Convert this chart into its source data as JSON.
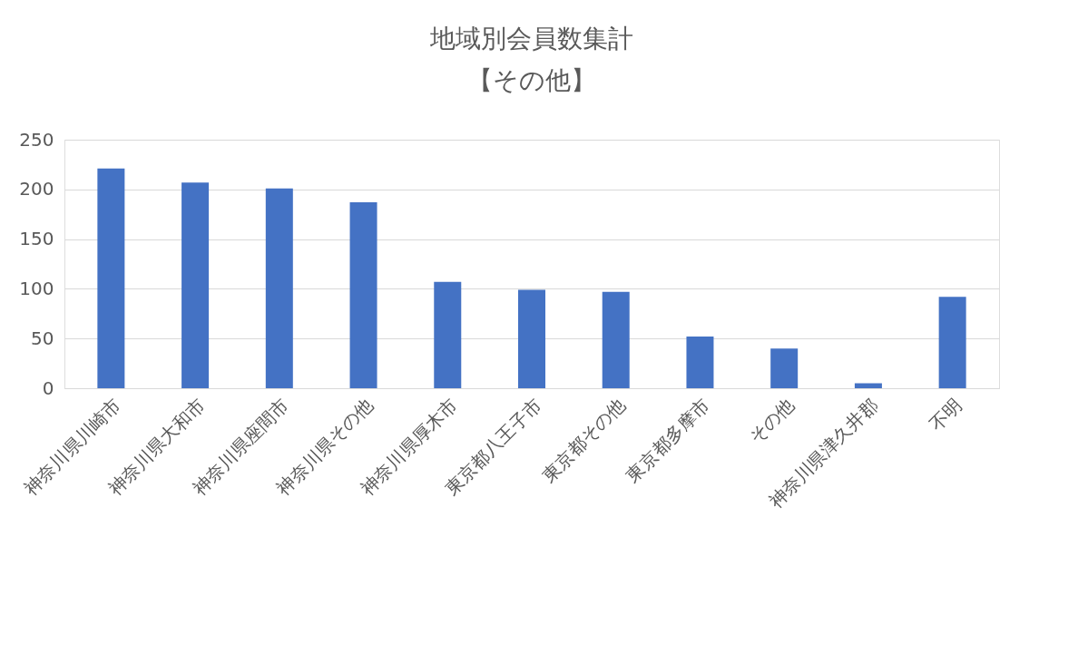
{
  "chart_data": {
    "type": "bar",
    "title": "地域別会員数集計",
    "subtitle": "【その他】",
    "categories": [
      "神奈川県川崎市",
      "神奈川県大和市",
      "神奈川県座間市",
      "神奈川県その他",
      "神奈川県厚木市",
      "東京都八王子市",
      "東京都その他",
      "東京都多摩市",
      "その他",
      "神奈川県津久井郡",
      "不明"
    ],
    "values": [
      221,
      207,
      201,
      187,
      107,
      99,
      97,
      52,
      40,
      5,
      92
    ],
    "color": "#4472c4",
    "ylim": [
      0,
      250
    ],
    "yticks": [
      0,
      50,
      100,
      150,
      200,
      250
    ],
    "grid": "y"
  }
}
